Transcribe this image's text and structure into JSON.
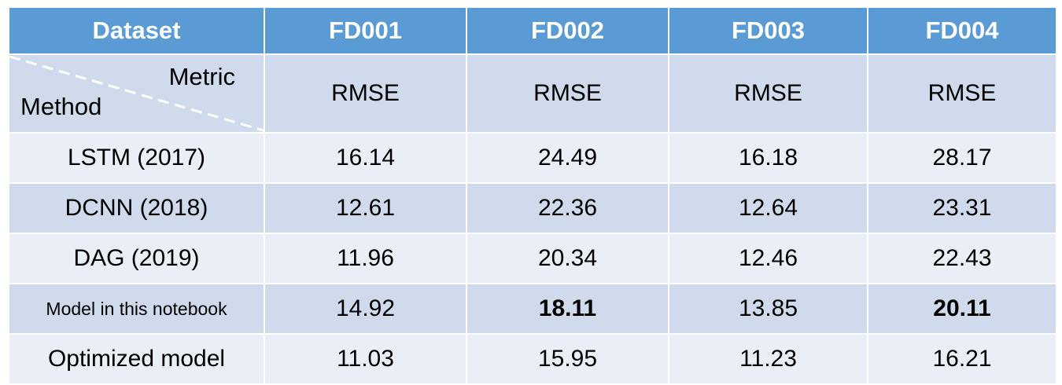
{
  "chart_data": {
    "type": "table",
    "header": {
      "corner": "Dataset",
      "columns": [
        "FD001",
        "FD002",
        "FD003",
        "FD004"
      ]
    },
    "metric_row": {
      "corner_metric": "Metric",
      "corner_method": "Method",
      "metrics": [
        "RMSE",
        "RMSE",
        "RMSE",
        "RMSE"
      ]
    },
    "rows": [
      {
        "method": "LSTM (2017)",
        "values": [
          "16.14",
          "24.49",
          "16.18",
          "28.17"
        ]
      },
      {
        "method": "DCNN (2018)",
        "values": [
          "12.61",
          "22.36",
          "12.64",
          "23.31"
        ]
      },
      {
        "method": "DAG (2019)",
        "values": [
          "11.96",
          "20.34",
          "12.46",
          "22.43"
        ]
      },
      {
        "method": "Model in this notebook",
        "values": [
          "14.92",
          "18.11",
          "13.85",
          "20.11"
        ],
        "bold": [
          false,
          true,
          false,
          true
        ]
      },
      {
        "method": "Optimized model",
        "values": [
          "11.03",
          "15.95",
          "11.23",
          "16.21"
        ]
      }
    ]
  },
  "colors": {
    "header_bg": "#5b9bd5",
    "row_dark": "#cfdbec",
    "row_light": "#e9eef7",
    "diagonal_line": "#ffffff"
  }
}
